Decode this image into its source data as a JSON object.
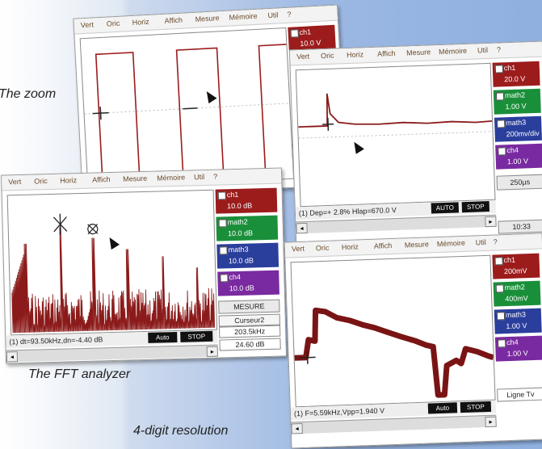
{
  "captions": {
    "zoom": "The zoom",
    "fft": "The FFT analyzer",
    "resolution": "4-digit resolution"
  },
  "menu": [
    "Vert",
    "Oric",
    "Horiz",
    "Affich",
    "Mesure",
    "Mémoire",
    "Util",
    "?"
  ],
  "colors": {
    "trace": "#8b1a1a",
    "ch1": "#9c1c1c",
    "ch2": "#1a8f3a",
    "ch3": "#2a3e9c",
    "ch4": "#7a2aa0"
  },
  "zoom_window": {
    "ch1": {
      "name": "ch1",
      "value": "10.0 V"
    }
  },
  "dc_window": {
    "channels": [
      {
        "name": "ch1",
        "value": "20.0 V"
      },
      {
        "name": "math2",
        "value": "1.00 V"
      },
      {
        "name": "math3",
        "value": "200mv/div"
      },
      {
        "name": "ch4",
        "value": "1.00 V"
      }
    ],
    "timebase": "250µs",
    "status": "(1) Dep=+  2.8% Hlap=670.0 V",
    "auto": "AUTO",
    "stop": "STOP",
    "time": "10:33"
  },
  "fft_window": {
    "channels": [
      {
        "name": "ch1",
        "value": "10.0 dB"
      },
      {
        "name": "math2",
        "value": "10.0 dB"
      },
      {
        "name": "math3",
        "value": "10.0 dB"
      },
      {
        "name": "ch4",
        "value": "10.0 dB"
      }
    ],
    "panel_label": "MESURE",
    "cursor_label": "Curseur2",
    "cursor_freq": "203.5kHz",
    "cursor_db": "24.60 dB",
    "status": "(1) dt=93.50kHz,dn=-4.40 dB",
    "auto": "Auto",
    "stop": "STOP"
  },
  "res_window": {
    "channels": [
      {
        "name": "ch1",
        "value": "200mV"
      },
      {
        "name": "math2",
        "value": "400mV"
      },
      {
        "name": "math3",
        "value": "1.00 V"
      },
      {
        "name": "ch4",
        "value": "1.00 V"
      }
    ],
    "trig_label": "Ligne Tv",
    "status": "(1) F=5.59kHz,Vpp=1.940 V",
    "auto": "Auto",
    "stop": "STOP"
  }
}
